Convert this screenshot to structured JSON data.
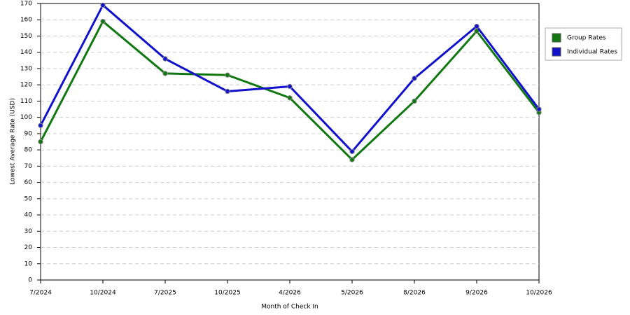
{
  "chart_data": {
    "type": "line",
    "categories": [
      "7/2024",
      "10/2024",
      "7/2025",
      "10/2025",
      "4/2026",
      "5/2026",
      "8/2026",
      "9/2026",
      "10/2026"
    ],
    "series": [
      {
        "name": "Group Rates",
        "color": "#117711",
        "values": [
          85,
          159,
          127,
          126,
          112,
          74,
          110,
          153,
          103
        ]
      },
      {
        "name": "Individual Rates",
        "color": "#1111cc",
        "values": [
          95,
          169,
          136,
          116,
          119,
          79,
          124,
          156,
          105
        ]
      }
    ],
    "x_label": "Month of Check In",
    "y_label": "Lowest Average Rate (USD)",
    "ylim": [
      0,
      170
    ],
    "yticks": [
      0,
      10,
      20,
      30,
      40,
      50,
      60,
      70,
      80,
      90,
      100,
      110,
      120,
      130,
      140,
      150,
      160,
      170
    ],
    "grid": true,
    "legend": "right"
  }
}
